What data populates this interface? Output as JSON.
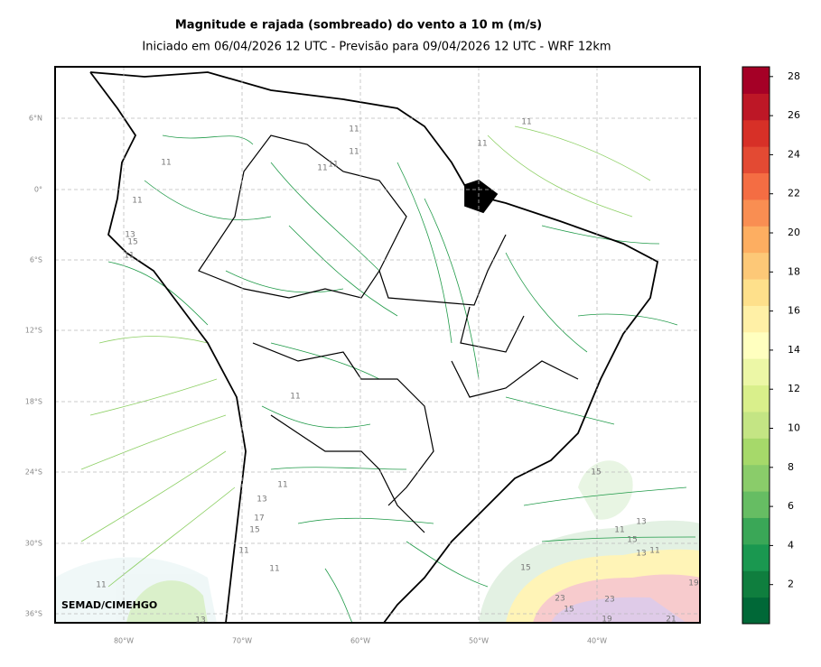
{
  "title": "Magnitude e rajada (sombreado) do vento a 10 m (m/s)",
  "subtitle": "Iniciado em 06/04/2026 12 UTC - Previsão para 09/04/2026 12 UTC - WRF 12km",
  "map": {
    "lat_ticks": [
      "6°N",
      "0°",
      "6°S",
      "12°S",
      "18°S",
      "24°S",
      "30°S",
      "36°S"
    ],
    "lon_ticks": [
      "80°W",
      "70°W",
      "60°W",
      "50°W",
      "40°W"
    ]
  },
  "credit": "SEMAD/CIMEHGO",
  "contour_labels": [
    11,
    11,
    11,
    11,
    11,
    11,
    11,
    11,
    13,
    15,
    11,
    11,
    11,
    13,
    17,
    15,
    11,
    11,
    11,
    13,
    15,
    13,
    11,
    15,
    13,
    11,
    15,
    19,
    23,
    23,
    15,
    19,
    21
  ],
  "colorbar": {
    "lim": [
      0,
      28.5
    ],
    "ticks": [
      2,
      4,
      6,
      8,
      10,
      12,
      14,
      16,
      18,
      20,
      22,
      24,
      26,
      28
    ],
    "colors": [
      "#006837",
      "#0f7e3e",
      "#1a9850",
      "#3aa757",
      "#66bd63",
      "#8acc6a",
      "#a6d96a",
      "#c4e584",
      "#d9ef8b",
      "#ecf7a6",
      "#ffffbf",
      "#fff0a6",
      "#fee08b",
      "#fdc877",
      "#fdae61",
      "#f98e52",
      "#f46d43",
      "#e34a33",
      "#d73027",
      "#bd1726",
      "#a50026"
    ]
  }
}
